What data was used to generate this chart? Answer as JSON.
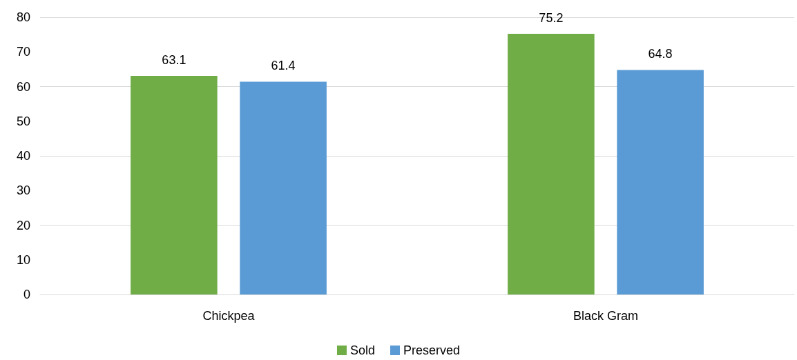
{
  "chart_data": {
    "type": "bar",
    "categories": [
      "Chickpea",
      "Black Gram"
    ],
    "series": [
      {
        "name": "Sold",
        "color": "#70ad47",
        "values": [
          63.1,
          75.2
        ]
      },
      {
        "name": "Preserved",
        "color": "#5b9bd5",
        "values": [
          61.4,
          64.8
        ]
      }
    ],
    "ylim": [
      0,
      80
    ],
    "yticks": [
      0,
      10,
      20,
      30,
      40,
      50,
      60,
      70,
      80
    ],
    "grid": "y",
    "legend": "bottom",
    "data_labels": true
  }
}
